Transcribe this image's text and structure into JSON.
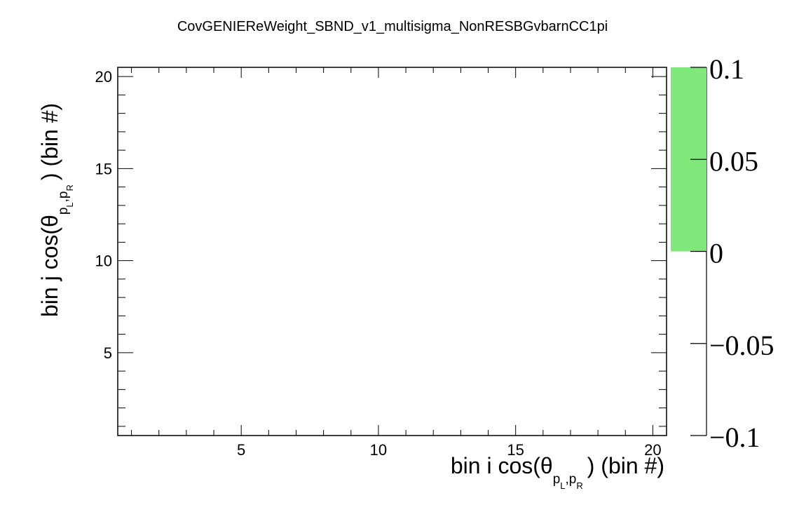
{
  "chart_data": {
    "type": "heatmap",
    "title": "CovGENIEReWeight_SBND_v1_multisigma_NonRESBGvbarnCC1pi",
    "xlabel": {
      "prefix": "bin i cos(θ",
      "sub_a": "p",
      "sub_a_index": "L",
      "sub_comma": ",",
      "sub_b": "p",
      "sub_b_index": "R",
      "suffix": ") (bin #)"
    },
    "ylabel": {
      "prefix": "bin j cos(θ",
      "sub_a": "p",
      "sub_a_index": "L",
      "sub_comma": ",",
      "sub_b": "p",
      "sub_b_index": "R",
      "suffix": ") (bin #)"
    },
    "xlim": [
      0.5,
      20.5
    ],
    "ylim": [
      0.5,
      20.5
    ],
    "x_ticks": [
      5,
      10,
      15,
      20
    ],
    "y_ticks": [
      5,
      10,
      15,
      20
    ],
    "x_tick_labels": [
      "5",
      "10",
      "15",
      "20"
    ],
    "y_tick_labels": [
      "5",
      "10",
      "15",
      "20"
    ],
    "cells": [],
    "colorbar": {
      "range": [
        -0.1,
        0.1
      ],
      "ticks": [
        -0.1,
        -0.05,
        0,
        0.05,
        0.1
      ],
      "tick_labels": [
        "−0.1",
        "−0.05",
        "0",
        "0.05",
        "0.1"
      ],
      "filled_range": [
        0,
        0.1
      ],
      "fill_color": "#80e87a"
    },
    "grid": false
  }
}
